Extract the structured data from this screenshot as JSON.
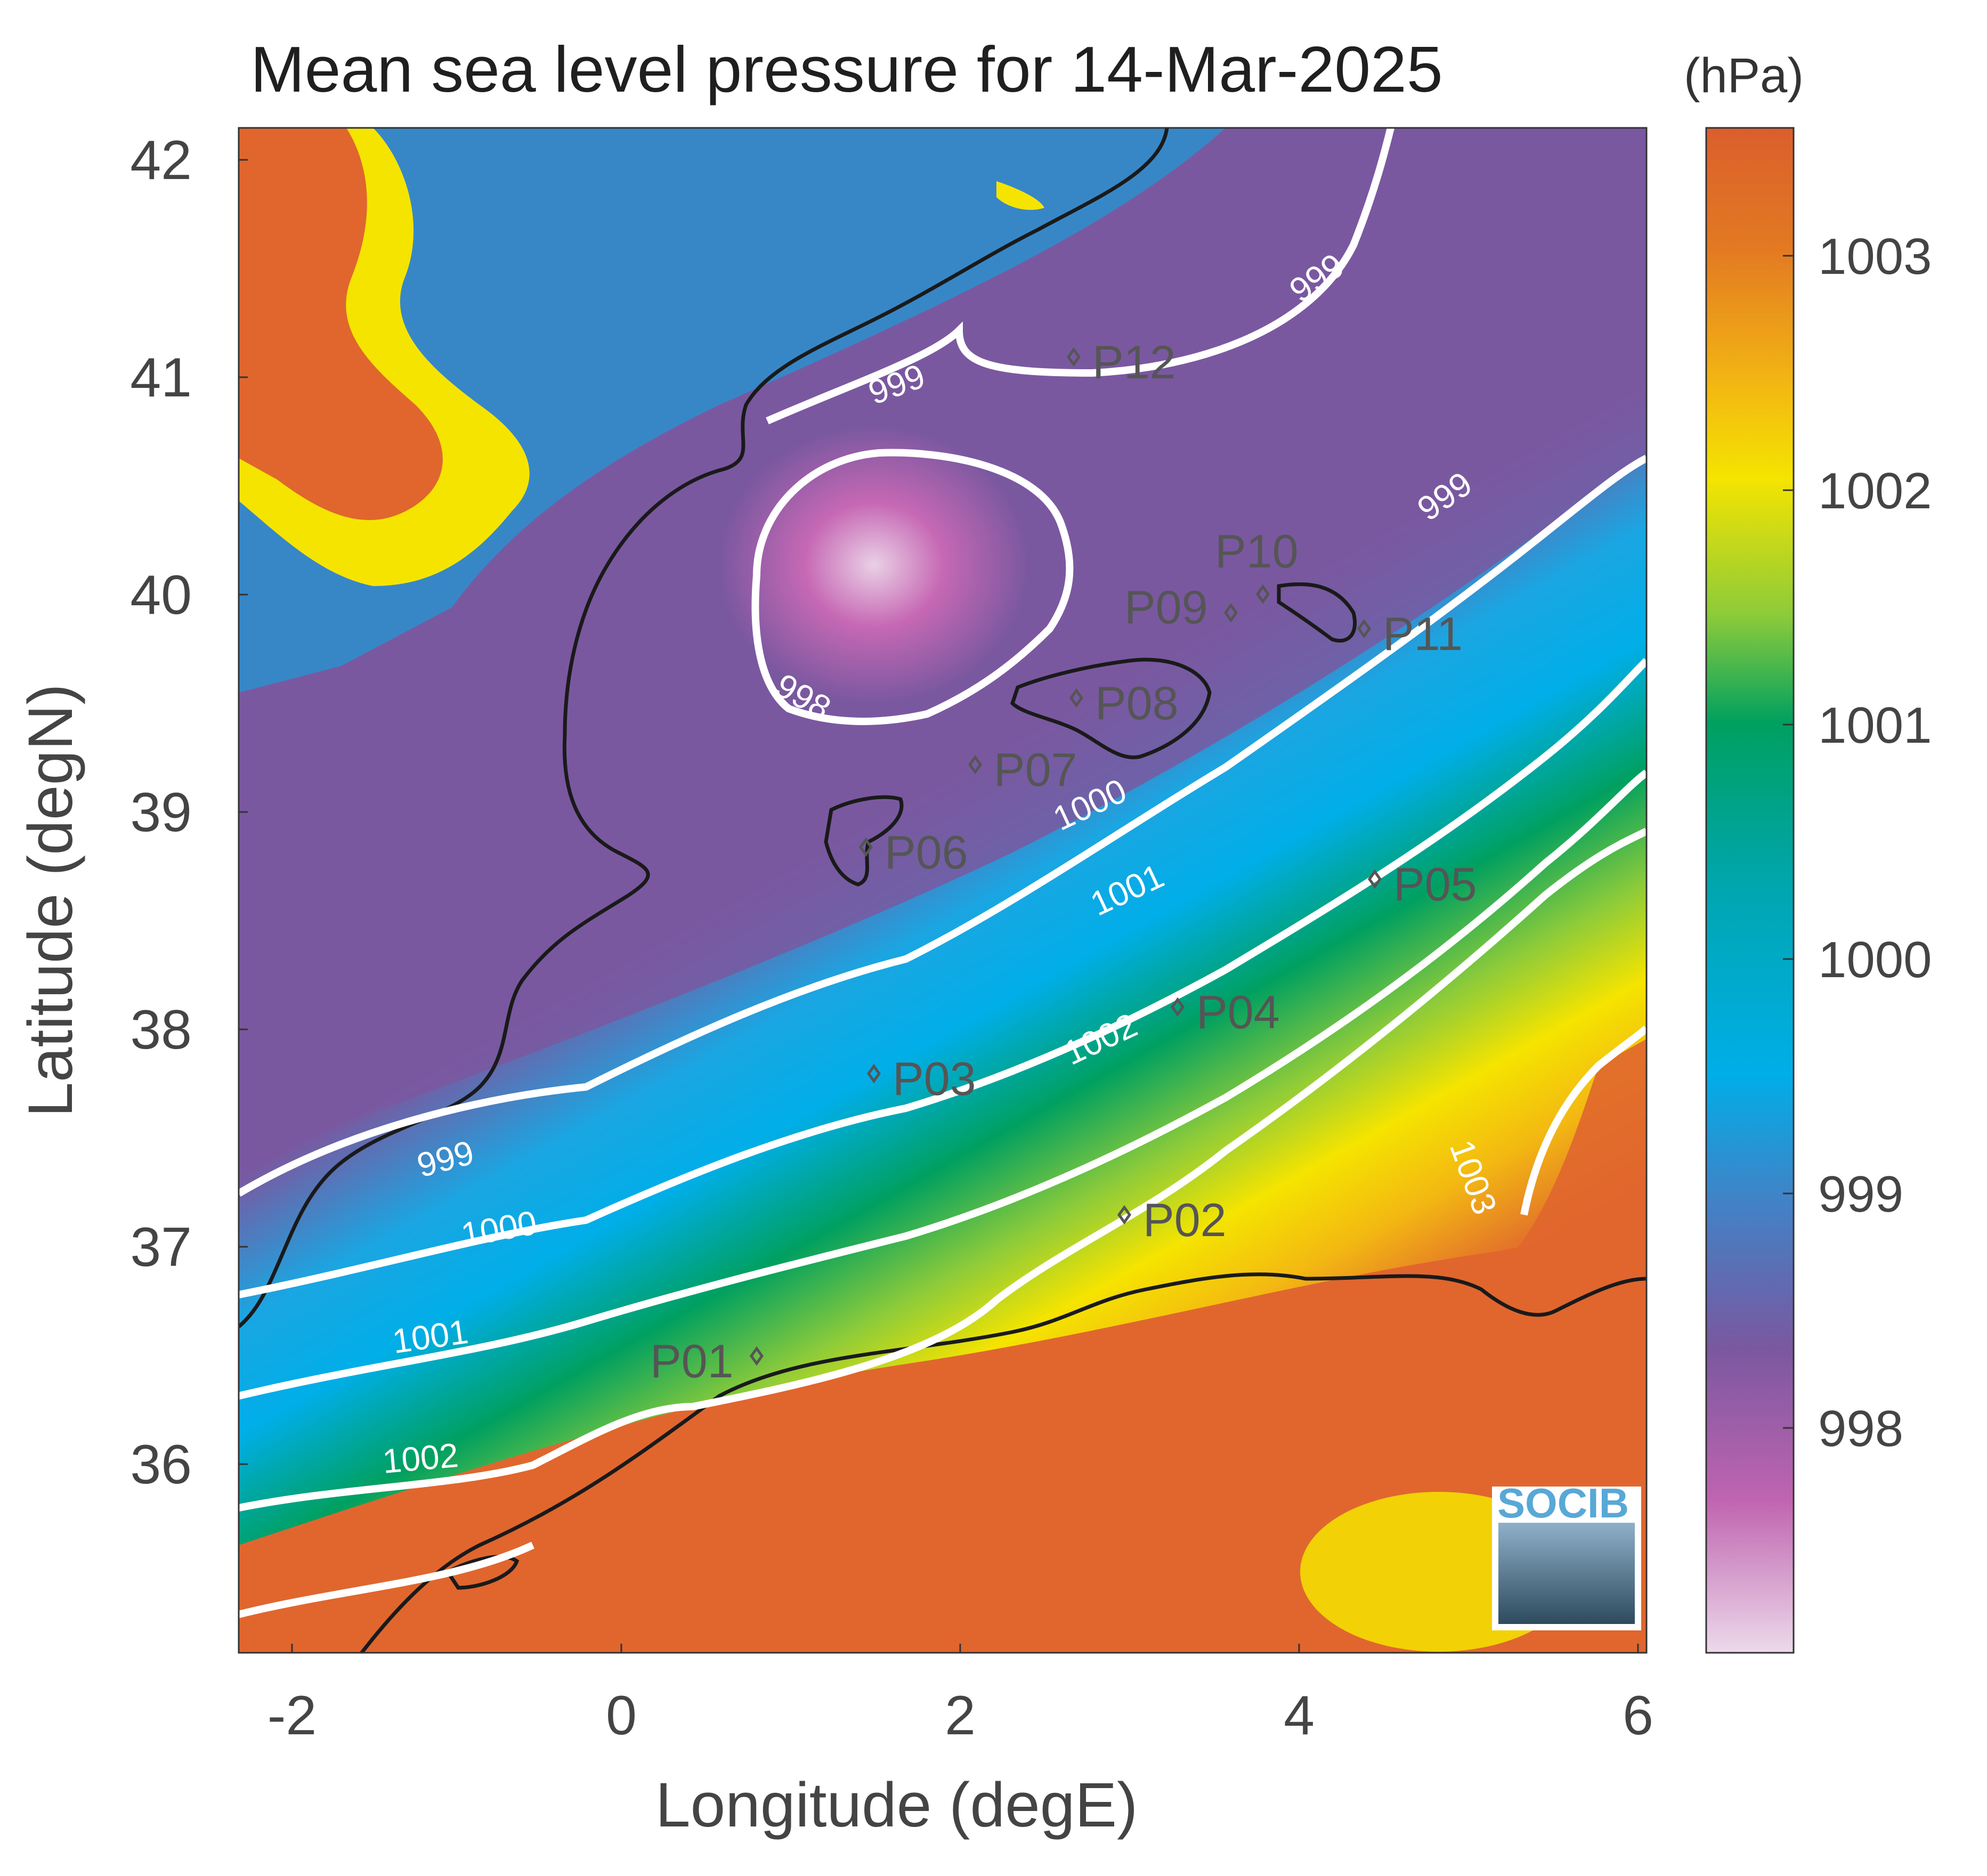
{
  "title": "Mean sea level pressure for 14-Mar-2025",
  "units": "(hPa)",
  "xlabel": "Longitude (degE)",
  "ylabel": "Latitude (degN)",
  "x_ticks": [
    "-2",
    "0",
    "2",
    "4",
    "6"
  ],
  "y_ticks": [
    "42",
    "41",
    "40",
    "39",
    "38",
    "37",
    "36"
  ],
  "colorbar_ticks": [
    "1003",
    "1002",
    "1001",
    "1000",
    "999",
    "998"
  ],
  "contour_labels": [
    "998",
    "999",
    "999",
    "999",
    "999",
    "1000",
    "1000",
    "1001",
    "1001",
    "1002",
    "1002",
    "1003"
  ],
  "stations": [
    "P01",
    "P02",
    "P03",
    "P04",
    "P05",
    "P06",
    "P07",
    "P08",
    "P09",
    "P10",
    "P11",
    "P12"
  ],
  "logo": "SOCIB",
  "colors": {
    "high": "#e0662e",
    "yellow": "#f5e400",
    "green": "#00a060",
    "cyan": "#00aee8",
    "purple": "#7a58a0",
    "low": "#e6c8e0"
  }
}
